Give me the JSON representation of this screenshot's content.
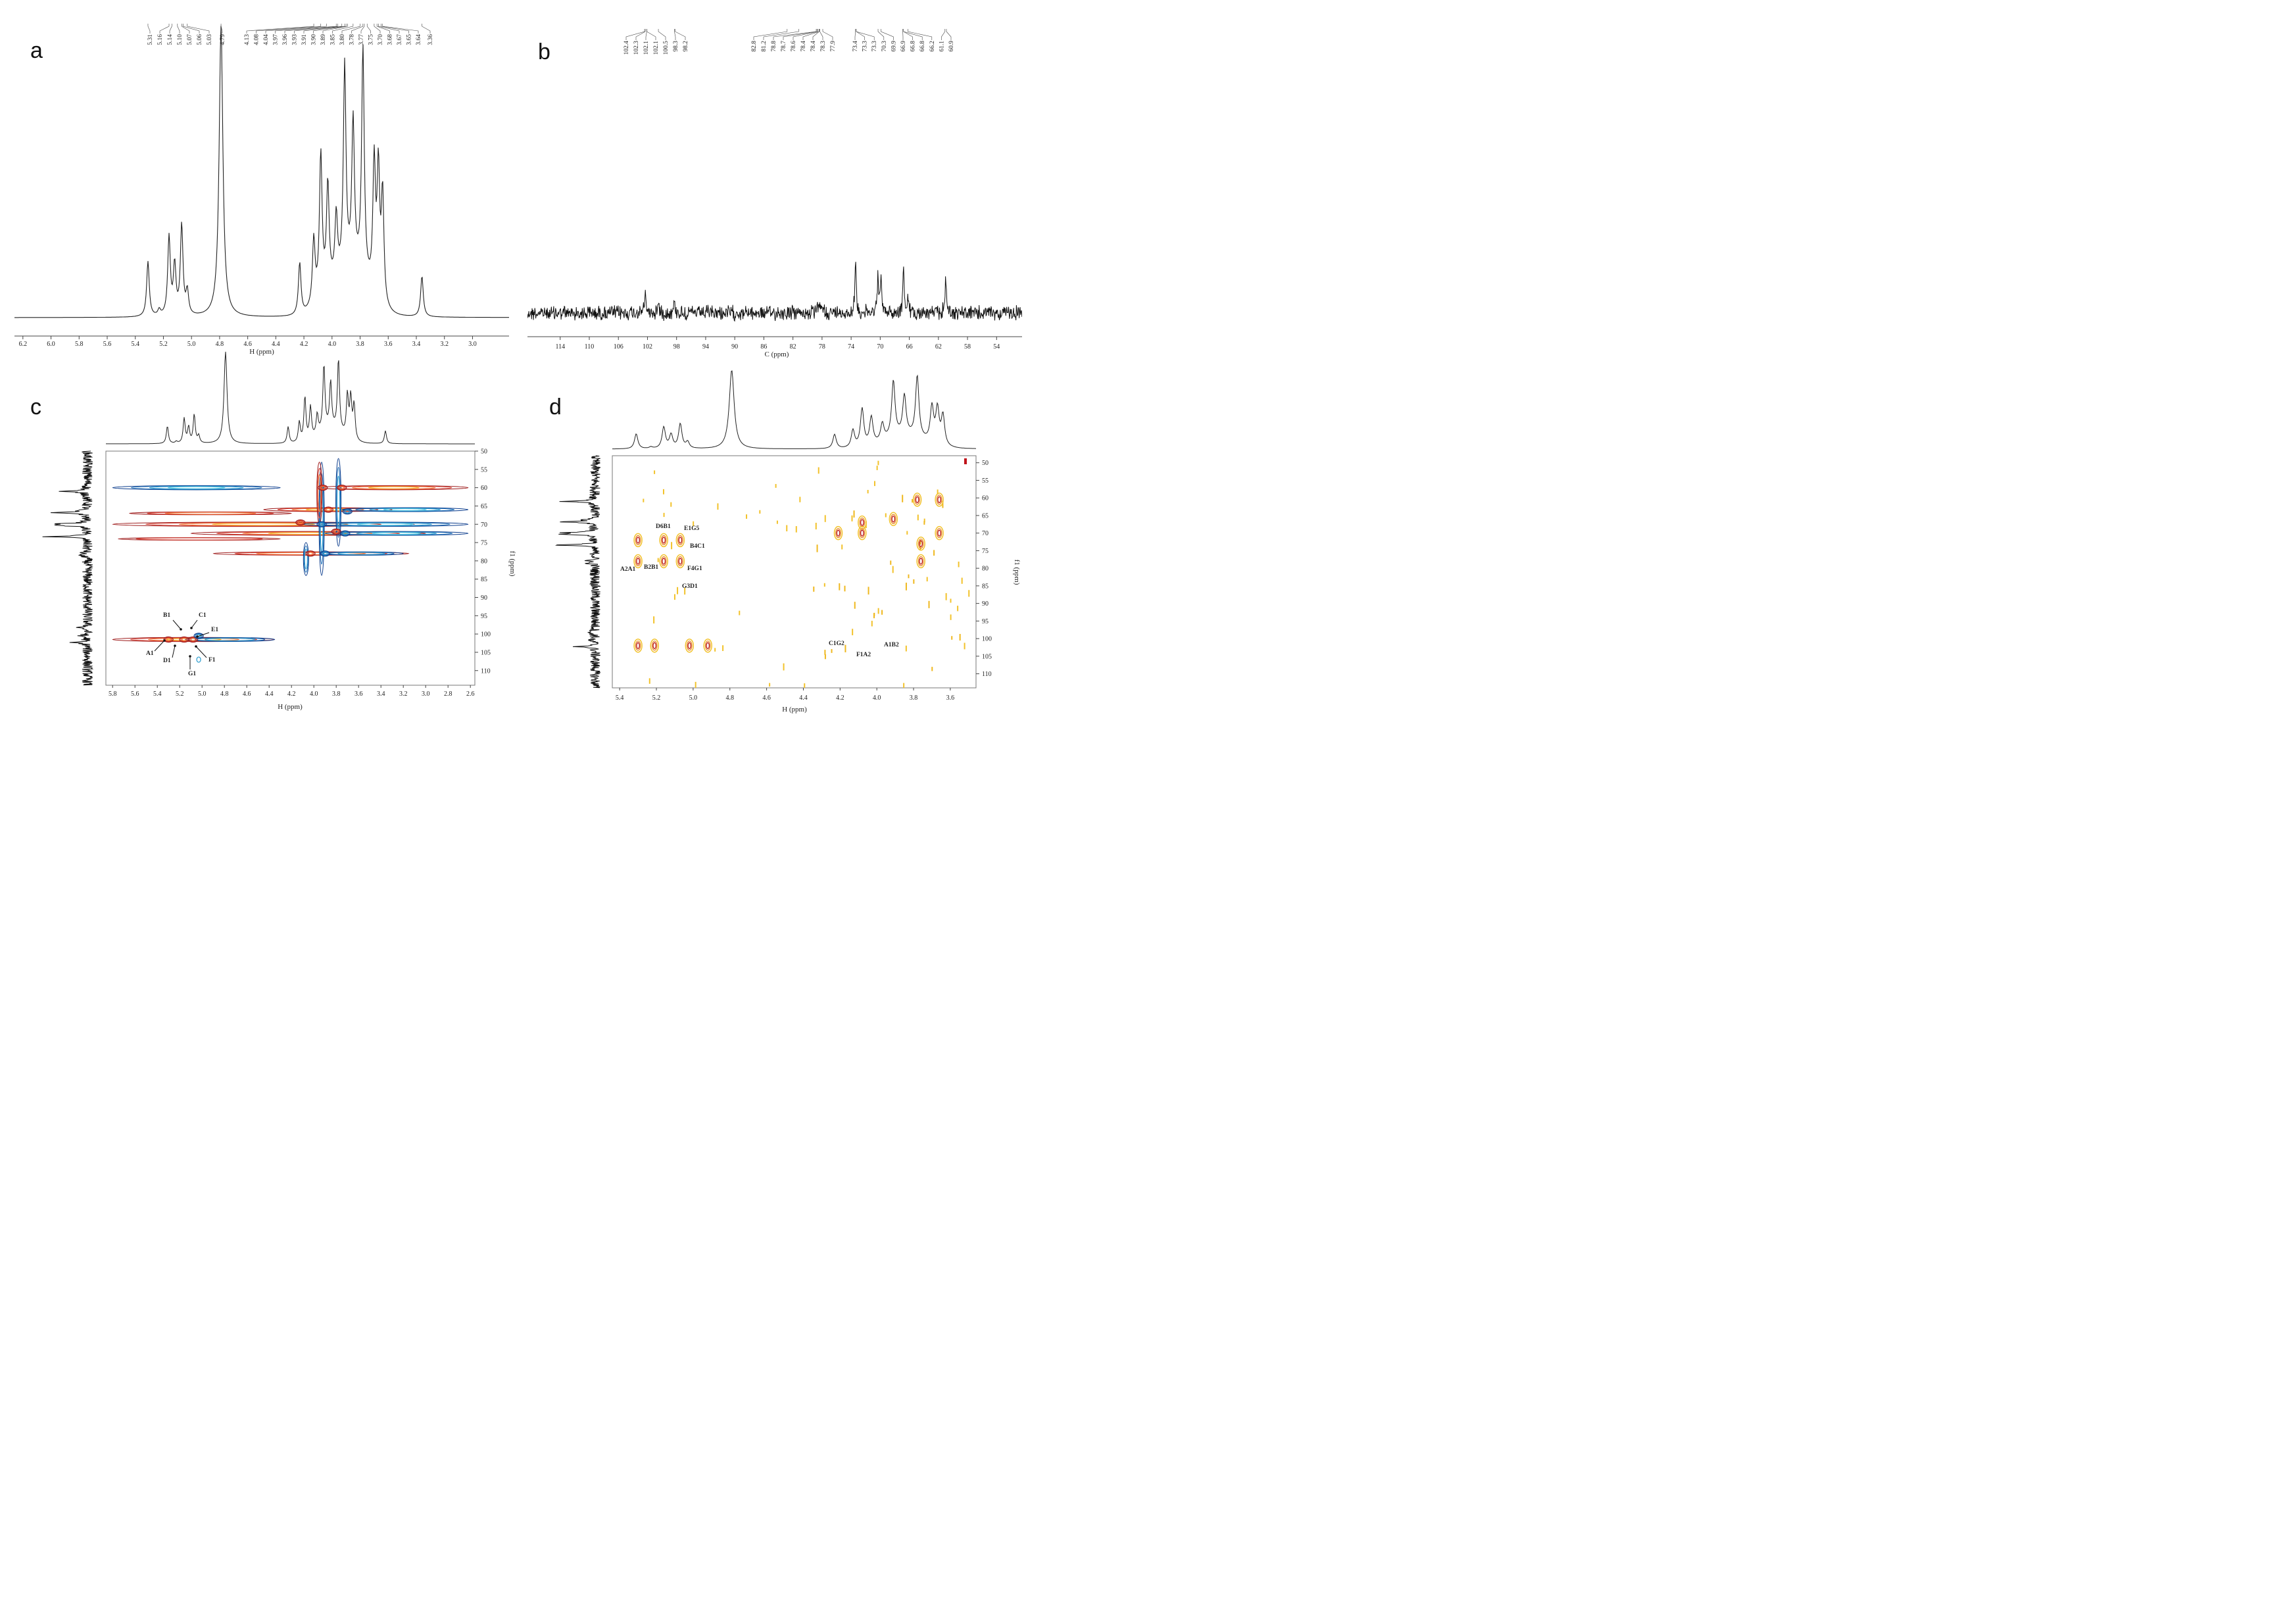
{
  "panels": [
    "a",
    "b",
    "c",
    "d"
  ],
  "chart_data": [
    {
      "type": "line",
      "panel": "a",
      "title": "",
      "xlabel": "H (ppm)",
      "ylabel": "",
      "xlim": [
        6.26,
        2.74
      ],
      "x_ticks": [
        "6.2",
        "6.0",
        "5.8",
        "5.6",
        "5.4",
        "5.2",
        "5.0",
        "4.8",
        "4.6",
        "4.4",
        "4.2",
        "4.0",
        "3.8",
        "3.6",
        "3.4",
        "3.2",
        "3.0"
      ],
      "peak_labels": [
        "5.31",
        "5.16",
        "5.14",
        "5.10",
        "5.07",
        "5.06",
        "5.03",
        "4.79",
        "4.13",
        "4.08",
        "4.04",
        "3.97",
        "3.96",
        "3.93",
        "3.91",
        "3.90",
        "3.89",
        "3.85",
        "3.80",
        "3.78",
        "3.77",
        "3.75",
        "3.70",
        "3.68",
        "3.67",
        "3.65",
        "3.64",
        "3.36"
      ],
      "peaks": [
        {
          "x": 5.31,
          "h": 0.19
        },
        {
          "x": 5.23,
          "h": 0.02
        },
        {
          "x": 5.16,
          "h": 0.27
        },
        {
          "x": 5.12,
          "h": 0.17
        },
        {
          "x": 5.07,
          "h": 0.31
        },
        {
          "x": 5.03,
          "h": 0.08
        },
        {
          "x": 4.79,
          "h": 1.0
        },
        {
          "x": 4.23,
          "h": 0.18
        },
        {
          "x": 4.13,
          "h": 0.22
        },
        {
          "x": 4.08,
          "h": 0.48
        },
        {
          "x": 4.03,
          "h": 0.35
        },
        {
          "x": 3.97,
          "h": 0.22
        },
        {
          "x": 3.91,
          "h": 0.71
        },
        {
          "x": 3.85,
          "h": 0.5
        },
        {
          "x": 3.78,
          "h": 0.78
        },
        {
          "x": 3.7,
          "h": 0.45
        },
        {
          "x": 3.67,
          "h": 0.44
        },
        {
          "x": 3.64,
          "h": 0.38
        },
        {
          "x": 3.36,
          "h": 0.14
        }
      ]
    },
    {
      "type": "line",
      "panel": "b",
      "title": "",
      "xlabel": "C (ppm)",
      "ylabel": "",
      "xlim": [
        118.5,
        50.5
      ],
      "x_ticks": [
        "114",
        "110",
        "106",
        "102",
        "98",
        "94",
        "90",
        "86",
        "82",
        "78",
        "74",
        "70",
        "66",
        "62",
        "58",
        "54"
      ],
      "peak_labels": [
        "102.4",
        "102.3",
        "102.1",
        "102.1",
        "100.5",
        "98.3",
        "98.2",
        "82.8",
        "81.2",
        "78.8",
        "78.7",
        "78.6",
        "78.4",
        "78.4",
        "78.3",
        "77.9",
        "73.4",
        "73.3",
        "73.3",
        "70.3",
        "69.9",
        "66.9",
        "66.8",
        "66.8",
        "66.2",
        "61.1",
        "60.9"
      ],
      "peaks": [
        {
          "x": 102.3,
          "h": 0.33
        },
        {
          "x": 100.5,
          "h": 0.16
        },
        {
          "x": 98.3,
          "h": 0.17
        },
        {
          "x": 78.5,
          "h": 0.16
        },
        {
          "x": 77.9,
          "h": 0.12
        },
        {
          "x": 73.4,
          "h": 0.8
        },
        {
          "x": 70.3,
          "h": 0.6
        },
        {
          "x": 69.9,
          "h": 0.5
        },
        {
          "x": 66.8,
          "h": 0.7
        },
        {
          "x": 66.2,
          "h": 0.2
        },
        {
          "x": 61.0,
          "h": 0.6
        }
      ]
    },
    {
      "type": "scatter",
      "panel": "c",
      "title": "",
      "xlabel": "H (ppm)",
      "ylabel": "f1 (ppm)",
      "xlim": [
        5.86,
        2.56
      ],
      "ylim": [
        50,
        114
      ],
      "x_ticks": [
        "5.8",
        "5.6",
        "5.4",
        "5.2",
        "5.0",
        "4.8",
        "4.6",
        "4.4",
        "4.2",
        "4.0",
        "3.8",
        "3.6",
        "3.4",
        "3.2",
        "3.0",
        "2.8",
        "2.6"
      ],
      "y_ticks": [
        "50",
        "55",
        "60",
        "65",
        "70",
        "75",
        "80",
        "85",
        "90",
        "95",
        "100",
        "105",
        "110"
      ],
      "annotations": [
        "B1",
        "C1",
        "E1",
        "A1",
        "D1",
        "F1",
        "G1"
      ],
      "cross_peaks": [
        {
          "x": 3.92,
          "y": 60,
          "color": "red"
        },
        {
          "x": 3.75,
          "y": 60,
          "color": "red"
        },
        {
          "x": 3.87,
          "y": 66,
          "color": "red"
        },
        {
          "x": 3.7,
          "y": 66.5,
          "color": "blue"
        },
        {
          "x": 4.12,
          "y": 69.5,
          "color": "red"
        },
        {
          "x": 3.93,
          "y": 70,
          "color": "blue"
        },
        {
          "x": 3.8,
          "y": 72,
          "color": "red"
        },
        {
          "x": 3.72,
          "y": 72.5,
          "color": "blue"
        },
        {
          "x": 4.03,
          "y": 78,
          "color": "red"
        },
        {
          "x": 3.9,
          "y": 78,
          "color": "blue"
        },
        {
          "x": 5.3,
          "y": 101.5,
          "color": "red"
        },
        {
          "x": 5.16,
          "y": 101.5,
          "color": "red"
        },
        {
          "x": 5.08,
          "y": 101.5,
          "color": "red"
        },
        {
          "x": 5.03,
          "y": 100.5,
          "color": "blue"
        }
      ]
    },
    {
      "type": "scatter",
      "panel": "d",
      "title": "",
      "xlabel": "H (ppm)",
      "ylabel": "f1 (ppm)",
      "xlim": [
        5.44,
        3.46
      ],
      "ylim": [
        48,
        114
      ],
      "x_ticks": [
        "5.4",
        "5.2",
        "5.0",
        "4.8",
        "4.6",
        "4.4",
        "4.2",
        "4.0",
        "3.8",
        "3.6"
      ],
      "y_ticks": [
        "50",
        "55",
        "60",
        "65",
        "70",
        "75",
        "80",
        "85",
        "90",
        "95",
        "100",
        "105",
        "110"
      ],
      "annotations": [
        "D6B1",
        "E1G5",
        "B4C1",
        "A2A1",
        "B2B1",
        "F4G1",
        "G3D1",
        "C1G2",
        "A1B2",
        "F1A2"
      ],
      "cross_peaks": [
        {
          "x": 5.3,
          "y": 72
        },
        {
          "x": 5.3,
          "y": 78
        },
        {
          "x": 5.16,
          "y": 72
        },
        {
          "x": 5.16,
          "y": 78
        },
        {
          "x": 5.07,
          "y": 72
        },
        {
          "x": 5.07,
          "y": 78
        },
        {
          "x": 5.3,
          "y": 102
        },
        {
          "x": 5.21,
          "y": 102
        },
        {
          "x": 5.02,
          "y": 102
        },
        {
          "x": 4.92,
          "y": 102
        },
        {
          "x": 4.08,
          "y": 67
        },
        {
          "x": 4.08,
          "y": 70
        },
        {
          "x": 3.91,
          "y": 66
        },
        {
          "x": 3.78,
          "y": 60.5
        },
        {
          "x": 3.66,
          "y": 60.5
        },
        {
          "x": 3.66,
          "y": 70
        },
        {
          "x": 3.76,
          "y": 73
        },
        {
          "x": 3.76,
          "y": 78
        },
        {
          "x": 4.21,
          "y": 70
        }
      ]
    }
  ]
}
